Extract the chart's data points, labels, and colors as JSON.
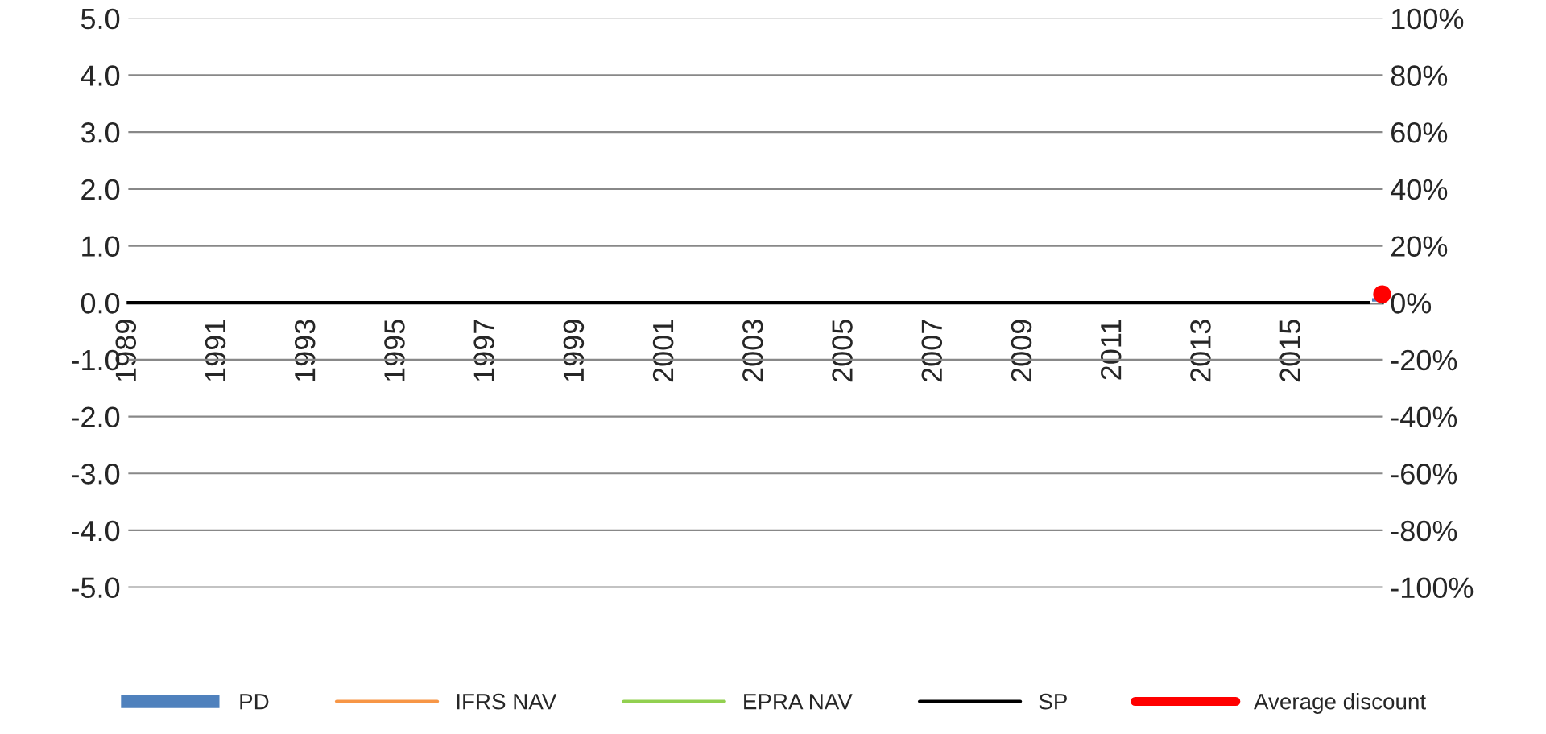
{
  "chart_data": {
    "type": "bar",
    "categories": [
      "1989",
      null,
      "1991",
      null,
      "1993",
      null,
      "1995",
      null,
      "1997",
      null,
      "1999",
      null,
      "2001",
      null,
      "2003",
      null,
      "2005",
      null,
      "2007",
      null,
      "2009",
      null,
      "2011",
      null,
      "2013",
      null,
      "2015",
      null,
      null
    ],
    "series": [
      {
        "name": "PD",
        "color": "#4f81bd",
        "values": [
          null,
          null,
          null,
          null,
          null,
          null,
          null,
          null,
          null,
          null,
          null,
          null,
          null,
          null,
          null,
          null,
          null,
          null,
          null,
          null,
          null,
          null,
          null,
          null,
          null,
          null,
          null,
          null,
          0.1
        ]
      },
      {
        "name": "IFRS NAV",
        "type": "line",
        "color": "#f79646",
        "values": [
          null,
          null,
          null,
          null,
          null,
          null,
          null,
          null,
          null,
          null,
          null,
          null,
          null,
          null,
          null,
          null,
          null,
          null,
          null,
          null,
          null,
          null,
          null,
          null,
          null,
          null,
          null,
          null,
          null
        ]
      },
      {
        "name": "EPRA NAV",
        "type": "line",
        "color": "#92d050",
        "values": [
          null,
          null,
          null,
          null,
          null,
          null,
          null,
          null,
          null,
          null,
          null,
          null,
          null,
          null,
          null,
          null,
          null,
          null,
          null,
          null,
          null,
          null,
          null,
          null,
          null,
          null,
          null,
          null,
          null
        ]
      },
      {
        "name": "SP",
        "type": "line",
        "color": "#000000",
        "values": [
          null,
          null,
          null,
          null,
          null,
          null,
          null,
          null,
          null,
          null,
          null,
          null,
          null,
          null,
          null,
          null,
          null,
          null,
          null,
          null,
          null,
          null,
          null,
          null,
          null,
          null,
          null,
          null,
          null
        ]
      },
      {
        "name": "Average discount",
        "type": "line",
        "color": "#ff0000",
        "axis": "y2",
        "marker": "circle",
        "values": [
          null,
          null,
          null,
          null,
          null,
          null,
          null,
          null,
          null,
          null,
          null,
          null,
          null,
          null,
          null,
          null,
          null,
          null,
          null,
          null,
          null,
          null,
          null,
          null,
          null,
          null,
          null,
          null,
          3
        ]
      }
    ],
    "ylim": [
      -5,
      5
    ],
    "yticks": [
      {
        "value": -5,
        "label": "-5.0"
      },
      {
        "value": -4,
        "label": "-4.0"
      },
      {
        "value": -3,
        "label": "-3.0"
      },
      {
        "value": -2,
        "label": "-2.0"
      },
      {
        "value": -1,
        "label": "-1.0"
      },
      {
        "value": 0,
        "label": "0.0"
      },
      {
        "value": 1,
        "label": "1.0"
      },
      {
        "value": 2,
        "label": "2.0"
      },
      {
        "value": 3,
        "label": "3.0"
      },
      {
        "value": 4,
        "label": "4.0"
      },
      {
        "value": 5,
        "label": "5.0"
      }
    ],
    "y2lim": [
      -100,
      100
    ],
    "y2ticks": [
      {
        "value": -100,
        "label": "-100%"
      },
      {
        "value": -80,
        "label": "-80%"
      },
      {
        "value": -60,
        "label": "-60%"
      },
      {
        "value": -40,
        "label": "-40%"
      },
      {
        "value": -20,
        "label": "-20%"
      },
      {
        "value": 0,
        "label": "0%"
      },
      {
        "value": 20,
        "label": "20%"
      },
      {
        "value": 40,
        "label": "40%"
      },
      {
        "value": 60,
        "label": "60%"
      },
      {
        "value": 80,
        "label": "80%"
      },
      {
        "value": 100,
        "label": "100%"
      }
    ],
    "grid": "y",
    "legend": "bottom"
  }
}
